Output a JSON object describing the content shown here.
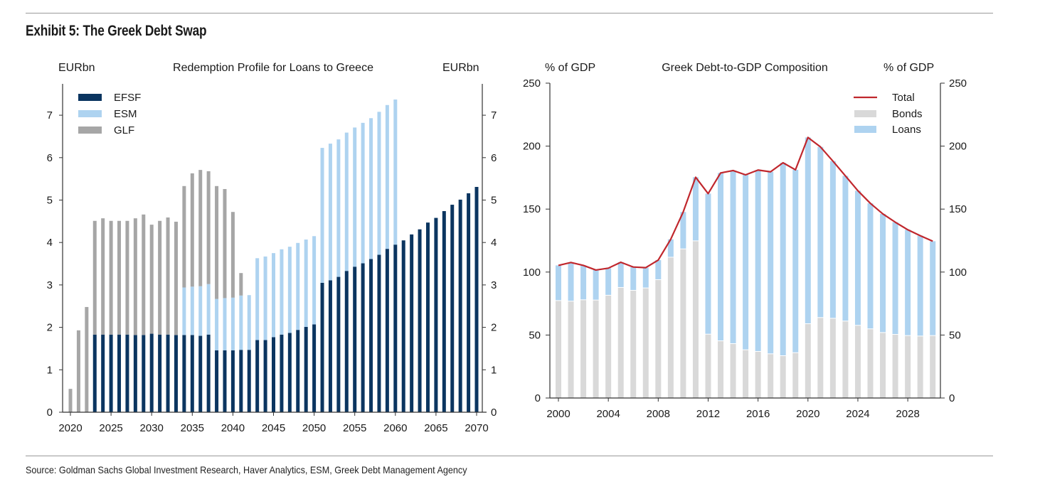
{
  "exhibit_title": "Exhibit 5: The Greek Debt Swap",
  "source": "Source: Goldman Sachs Global Investment Research, Haver Analytics, ESM, Greek Debt Management Agency",
  "colors": {
    "efsf": "#0b3560",
    "esm": "#aed3f0",
    "glf": "#a6a6a6",
    "bonds": "#d9d9d9",
    "loans": "#aed3f0",
    "total": "#c0272d"
  },
  "chart_data": [
    {
      "type": "bar",
      "stacked": true,
      "title": "Redemption Profile for Loans to Greece",
      "ylabel_left": "EURbn",
      "ylabel_right": "EURbn",
      "ylim": [
        0,
        7.7
      ],
      "yticks": [
        "0",
        "1",
        "2",
        "3",
        "4",
        "5",
        "6",
        "7"
      ],
      "xticks": [
        "2020",
        "2025",
        "2030",
        "2035",
        "2040",
        "2045",
        "2050",
        "2055",
        "2060",
        "2065",
        "2070"
      ],
      "legend_placement": "top-left",
      "grid": false,
      "x": [
        2020,
        2021,
        2022,
        2023,
        2024,
        2025,
        2026,
        2027,
        2028,
        2029,
        2030,
        2031,
        2032,
        2033,
        2034,
        2035,
        2036,
        2037,
        2038,
        2039,
        2040,
        2041,
        2042,
        2043,
        2044,
        2045,
        2046,
        2047,
        2048,
        2049,
        2050,
        2051,
        2052,
        2053,
        2054,
        2055,
        2056,
        2057,
        2058,
        2059,
        2060,
        2061,
        2062,
        2063,
        2064,
        2065,
        2066,
        2067,
        2068,
        2069,
        2070
      ],
      "series": [
        {
          "name": "EFSF",
          "values": [
            0,
            0,
            0,
            1.83,
            1.83,
            1.83,
            1.83,
            1.83,
            1.82,
            1.82,
            1.85,
            1.83,
            1.83,
            1.82,
            1.82,
            1.82,
            1.8,
            1.83,
            1.46,
            1.46,
            1.46,
            1.47,
            1.47,
            1.7,
            1.7,
            1.77,
            1.83,
            1.87,
            1.94,
            2.01,
            2.07,
            3.05,
            3.11,
            3.19,
            3.33,
            3.43,
            3.51,
            3.61,
            3.71,
            3.85,
            3.95,
            4.05,
            4.19,
            4.31,
            4.47,
            4.58,
            4.74,
            4.89,
            5.01,
            5.16,
            5.31
          ]
        },
        {
          "name": "ESM",
          "values": [
            0,
            0,
            0,
            0,
            0,
            0,
            0,
            0,
            0,
            0,
            0,
            0,
            0,
            0,
            1.12,
            1.14,
            1.17,
            1.19,
            1.21,
            1.23,
            1.24,
            1.28,
            1.29,
            1.93,
            1.97,
            1.98,
            2.01,
            2.03,
            2.05,
            2.06,
            2.08,
            3.18,
            3.22,
            3.24,
            3.26,
            3.28,
            3.31,
            3.32,
            3.37,
            3.39,
            3.42,
            0,
            0,
            0,
            0,
            0,
            0,
            0,
            0,
            0,
            0
          ]
        },
        {
          "name": "GLF",
          "values": [
            0.55,
            1.93,
            2.48,
            2.68,
            2.74,
            2.68,
            2.68,
            2.68,
            2.75,
            2.84,
            2.57,
            2.68,
            2.76,
            2.67,
            2.39,
            2.67,
            2.74,
            2.66,
            2.66,
            2.57,
            2.02,
            0.53,
            0,
            0,
            0,
            0,
            0,
            0,
            0,
            0,
            0,
            0,
            0,
            0,
            0,
            0,
            0,
            0,
            0,
            0,
            0,
            0,
            0,
            0,
            0,
            0,
            0,
            0,
            0,
            0,
            0
          ]
        }
      ]
    },
    {
      "type": "bar+line",
      "stacked": true,
      "title": "Greek Debt-to-GDP Composition",
      "ylabel_left": "% of GDP",
      "ylabel_right": "% of GDP",
      "ylim": [
        0,
        250
      ],
      "yticks": [
        "0",
        "50",
        "100",
        "150",
        "200",
        "250"
      ],
      "xticks": [
        "2000",
        "2004",
        "2008",
        "2012",
        "2016",
        "2020",
        "2024",
        "2028"
      ],
      "legend_placement": "top-right",
      "grid": false,
      "x": [
        2000,
        2001,
        2002,
        2003,
        2004,
        2005,
        2006,
        2007,
        2008,
        2009,
        2010,
        2011,
        2012,
        2013,
        2014,
        2015,
        2016,
        2017,
        2018,
        2019,
        2020,
        2021,
        2022,
        2023,
        2024,
        2025,
        2026,
        2027,
        2028,
        2029,
        2030
      ],
      "series": [
        {
          "name": "Total",
          "kind": "line",
          "values": [
            105.3,
            107.6,
            105.3,
            101.6,
            103.1,
            107.8,
            104.0,
            103.5,
            109.5,
            126.0,
            147.7,
            175.3,
            162.3,
            178.7,
            180.6,
            177.2,
            181.0,
            179.6,
            186.8,
            181.2,
            206.9,
            199.4,
            188.1,
            176.4,
            164.6,
            154.6,
            146.2,
            139.6,
            133.6,
            128.9,
            124.5
          ]
        },
        {
          "name": "Bonds",
          "kind": "bar",
          "values": [
            77.1,
            76.6,
            77.7,
            77.5,
            81.3,
            87.5,
            85.2,
            87.1,
            93.7,
            111.5,
            118.1,
            124.5,
            50.4,
            45.1,
            42.9,
            38.0,
            36.7,
            34.8,
            33.3,
            35.7,
            58.7,
            63.6,
            63.0,
            60.8,
            57.4,
            54.6,
            51.7,
            50.2,
            49.3,
            48.9,
            49.3
          ]
        },
        {
          "name": "Loans",
          "kind": "bar",
          "values": [
            28.2,
            31.0,
            27.6,
            24.1,
            21.8,
            20.3,
            18.8,
            16.4,
            15.8,
            14.5,
            29.6,
            50.8,
            111.9,
            133.6,
            137.7,
            139.2,
            144.3,
            144.8,
            153.5,
            145.5,
            148.2,
            135.8,
            125.1,
            115.6,
            107.2,
            100.0,
            94.5,
            89.4,
            84.3,
            80.0,
            75.2
          ]
        }
      ]
    }
  ]
}
